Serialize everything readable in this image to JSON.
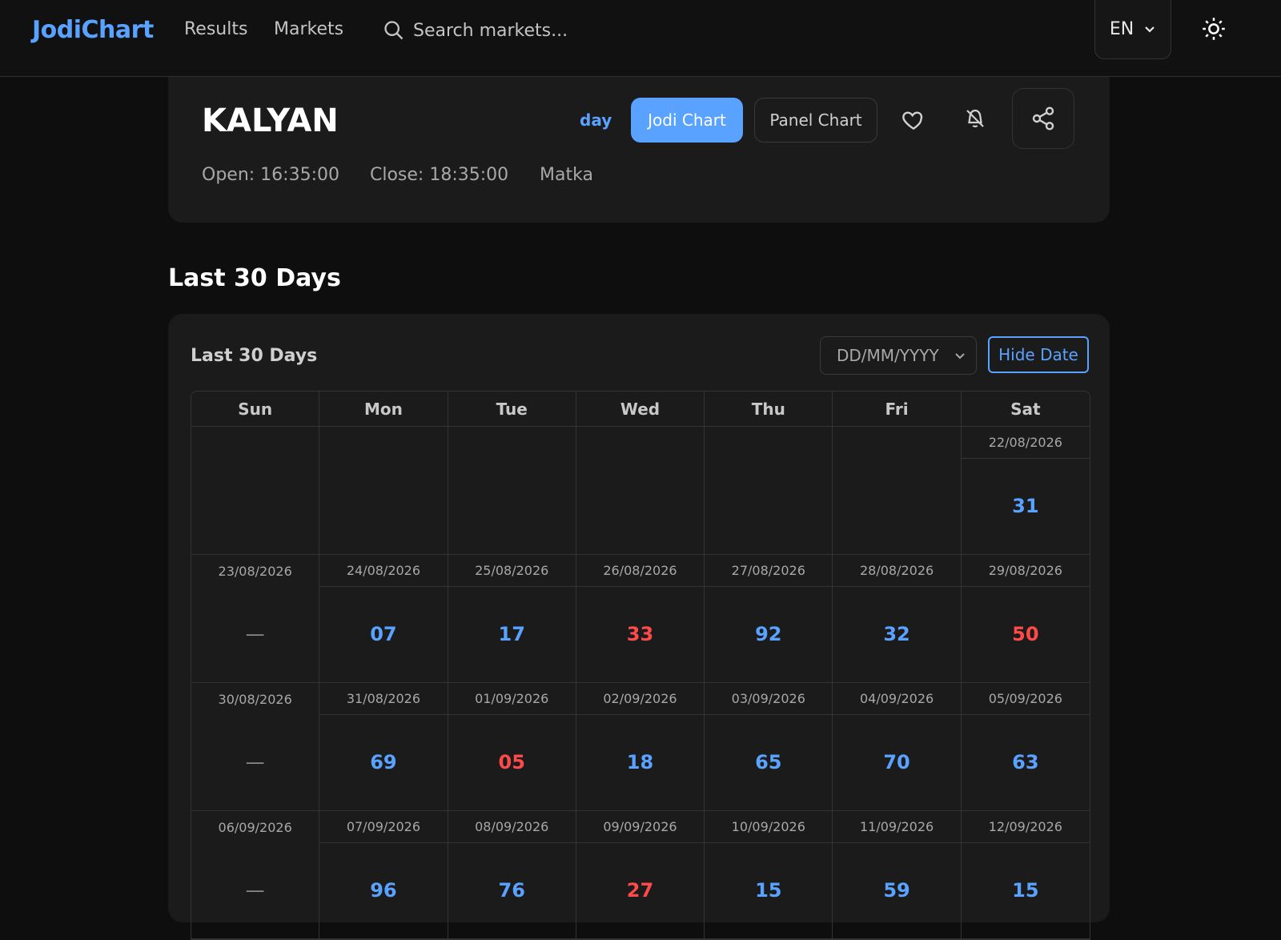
{
  "topbar": {
    "brand": "JodiChart",
    "nav": {
      "results": "Results",
      "markets": "Markets"
    },
    "search_placeholder": "Search markets...",
    "language": "EN"
  },
  "market": {
    "title": "KALYAN",
    "open": "Open: 16:35:00",
    "close": "Close: 18:35:00",
    "category": "Matka",
    "day_link": "day",
    "jodi_chart_label": "Jodi Chart",
    "panel_chart_label": "Panel Chart"
  },
  "section_heading": "Last 30 Days",
  "chart": {
    "title": "Last 30 Days",
    "date_placeholder": "DD/MM/YYYY",
    "hide_date_label": "Hide Date",
    "weekdays": [
      "Sun",
      "Mon",
      "Tue",
      "Wed",
      "Thu",
      "Fri",
      "Sat"
    ],
    "weeks": [
      [
        {
          "date": "",
          "value": "",
          "color": ""
        },
        {
          "date": "",
          "value": "",
          "color": ""
        },
        {
          "date": "",
          "value": "",
          "color": ""
        },
        {
          "date": "",
          "value": "",
          "color": ""
        },
        {
          "date": "",
          "value": "",
          "color": ""
        },
        {
          "date": "",
          "value": "",
          "color": ""
        },
        {
          "date": "22/08/2026",
          "value": "31",
          "color": "blue"
        }
      ],
      [
        {
          "date": "23/08/2026",
          "value": "—",
          "color": "dash"
        },
        {
          "date": "24/08/2026",
          "value": "07",
          "color": "blue"
        },
        {
          "date": "25/08/2026",
          "value": "17",
          "color": "blue"
        },
        {
          "date": "26/08/2026",
          "value": "33",
          "color": "red"
        },
        {
          "date": "27/08/2026",
          "value": "92",
          "color": "blue"
        },
        {
          "date": "28/08/2026",
          "value": "32",
          "color": "blue"
        },
        {
          "date": "29/08/2026",
          "value": "50",
          "color": "red"
        }
      ],
      [
        {
          "date": "30/08/2026",
          "value": "—",
          "color": "dash"
        },
        {
          "date": "31/08/2026",
          "value": "69",
          "color": "blue"
        },
        {
          "date": "01/09/2026",
          "value": "05",
          "color": "red"
        },
        {
          "date": "02/09/2026",
          "value": "18",
          "color": "blue"
        },
        {
          "date": "03/09/2026",
          "value": "65",
          "color": "blue"
        },
        {
          "date": "04/09/2026",
          "value": "70",
          "color": "blue"
        },
        {
          "date": "05/09/2026",
          "value": "63",
          "color": "blue"
        }
      ],
      [
        {
          "date": "06/09/2026",
          "value": "—",
          "color": "dash"
        },
        {
          "date": "07/09/2026",
          "value": "96",
          "color": "blue"
        },
        {
          "date": "08/09/2026",
          "value": "76",
          "color": "blue"
        },
        {
          "date": "09/09/2026",
          "value": "27",
          "color": "red"
        },
        {
          "date": "10/09/2026",
          "value": "15",
          "color": "blue"
        },
        {
          "date": "11/09/2026",
          "value": "59",
          "color": "blue"
        },
        {
          "date": "12/09/2026",
          "value": "15",
          "color": "blue"
        }
      ]
    ]
  },
  "colors": {
    "accent": "#5aa2ff",
    "red": "#ff4a4a",
    "background": "#0e0e0e",
    "card": "#1b1b1b"
  },
  "icons": [
    "search-icon",
    "chevron-down-icon",
    "sun-icon",
    "heart-icon",
    "bell-off-icon",
    "share-icon"
  ]
}
